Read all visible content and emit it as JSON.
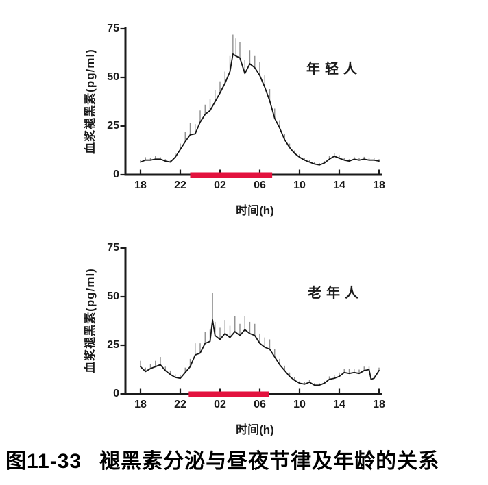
{
  "figure": {
    "caption_number": "图11-33",
    "caption_title": "褪黑素分泌与昼夜节律及年龄的关系",
    "background": "#ffffff"
  },
  "colors": {
    "curve": "#151515",
    "error_bar": "#8f8f8f",
    "axis": "#1a1a1a",
    "night_bar": "#e3123e",
    "text": "#1a1a1a"
  },
  "chart_data": [
    {
      "type": "line",
      "series_label": "年轻人",
      "ylabel": "血浆褪黑素(pg/ml)",
      "xlabel": "时间(h)",
      "x_tick_labels": [
        "18",
        "22",
        "02",
        "06",
        "10",
        "14",
        "18"
      ],
      "x_tick_hours": [
        0,
        4,
        8,
        12,
        16,
        20,
        24
      ],
      "y_tick_values": [
        0,
        25,
        50,
        75
      ],
      "ylim": [
        0,
        75
      ],
      "x_hours_after_18": true,
      "night_bar_span_hours": [
        5,
        13.25
      ],
      "x": [
        0,
        0.5,
        1,
        1.5,
        2,
        2.5,
        3,
        3.5,
        4,
        4.5,
        5,
        5.5,
        6,
        6.5,
        7,
        7.5,
        8,
        8.5,
        9,
        9.3,
        9.6,
        10,
        10.5,
        11,
        11.5,
        12,
        12.5,
        13,
        13.5,
        14,
        14.5,
        15,
        15.5,
        16,
        16.5,
        17,
        17.5,
        18,
        18.5,
        19,
        19.5,
        20,
        20.5,
        21,
        21.5,
        22,
        22.5,
        23,
        23.5,
        24
      ],
      "values": [
        6.5,
        7.5,
        7.5,
        8,
        8,
        7,
        6.5,
        9,
        13,
        17,
        20.5,
        21,
        27,
        31,
        33,
        37.5,
        42,
        47,
        53,
        62,
        61,
        60,
        52,
        57,
        55,
        51,
        45,
        38,
        29,
        24,
        18,
        14,
        11,
        9,
        7.5,
        6.5,
        5.5,
        5,
        6,
        8,
        9.5,
        8.5,
        7.5,
        7,
        8,
        7.5,
        8,
        7.5,
        7.5,
        7
      ],
      "err_up": [
        1,
        1.5,
        1,
        1.5,
        1,
        1,
        0.8,
        2,
        3,
        5,
        6,
        5,
        6,
        5,
        6,
        6,
        6,
        6,
        8,
        10,
        9,
        8,
        7,
        7,
        6,
        7,
        6,
        6,
        5,
        4,
        3,
        2,
        1.5,
        1.5,
        1,
        1,
        1,
        1,
        1,
        1.5,
        1.5,
        1.5,
        1,
        1,
        1.2,
        1,
        1.2,
        1,
        1,
        1
      ]
    },
    {
      "type": "line",
      "series_label": "老年人",
      "ylabel": "血浆褪黑素(pg/ml)",
      "xlabel": "时间(h)",
      "x_tick_labels": [
        "18",
        "22",
        "02",
        "06",
        "10",
        "14",
        "18"
      ],
      "x_tick_hours": [
        0,
        4,
        8,
        12,
        16,
        20,
        24
      ],
      "y_tick_values": [
        0,
        25,
        50,
        75
      ],
      "ylim": [
        0,
        75
      ],
      "x_hours_after_18": true,
      "night_bar_span_hours": [
        4.85,
        12.9
      ],
      "x": [
        0,
        0.5,
        1,
        1.5,
        2,
        2.5,
        3,
        3.5,
        4,
        4.5,
        5,
        5.5,
        6,
        6.5,
        7,
        7.25,
        7.5,
        8,
        8.5,
        9,
        9.5,
        10,
        10.5,
        11,
        11.5,
        12,
        12.5,
        13,
        13.5,
        14,
        14.5,
        15,
        15.5,
        16,
        16.5,
        17,
        17.5,
        18,
        18.5,
        19,
        19.5,
        20,
        20.5,
        21,
        21.5,
        22,
        22.5,
        23,
        23.2,
        23.5,
        24
      ],
      "values": [
        14,
        11.5,
        13,
        14,
        15,
        12,
        10,
        8.5,
        8,
        11,
        14,
        20,
        21,
        26,
        27,
        38,
        30,
        28,
        31,
        29,
        32,
        30,
        33,
        31,
        30,
        26,
        24,
        23,
        19,
        15,
        12,
        9,
        7,
        5.5,
        5,
        6,
        4.5,
        4.5,
        5.5,
        7.5,
        8,
        9,
        11,
        10.5,
        11,
        10.5,
        12,
        12.5,
        7.5,
        8,
        12
      ],
      "err_up": [
        3,
        2,
        2.5,
        3,
        4,
        2,
        2,
        1.5,
        1.5,
        2.5,
        4,
        6,
        5,
        6,
        6,
        14,
        7,
        6,
        7,
        6,
        8,
        6,
        7,
        6,
        6,
        5,
        5,
        5,
        4,
        3,
        2.5,
        2,
        1.5,
        1,
        1,
        1.2,
        1,
        1,
        1,
        1.5,
        1.5,
        2,
        2,
        2.5,
        2,
        2,
        2,
        1.5,
        1,
        1.5,
        1.5
      ]
    }
  ]
}
